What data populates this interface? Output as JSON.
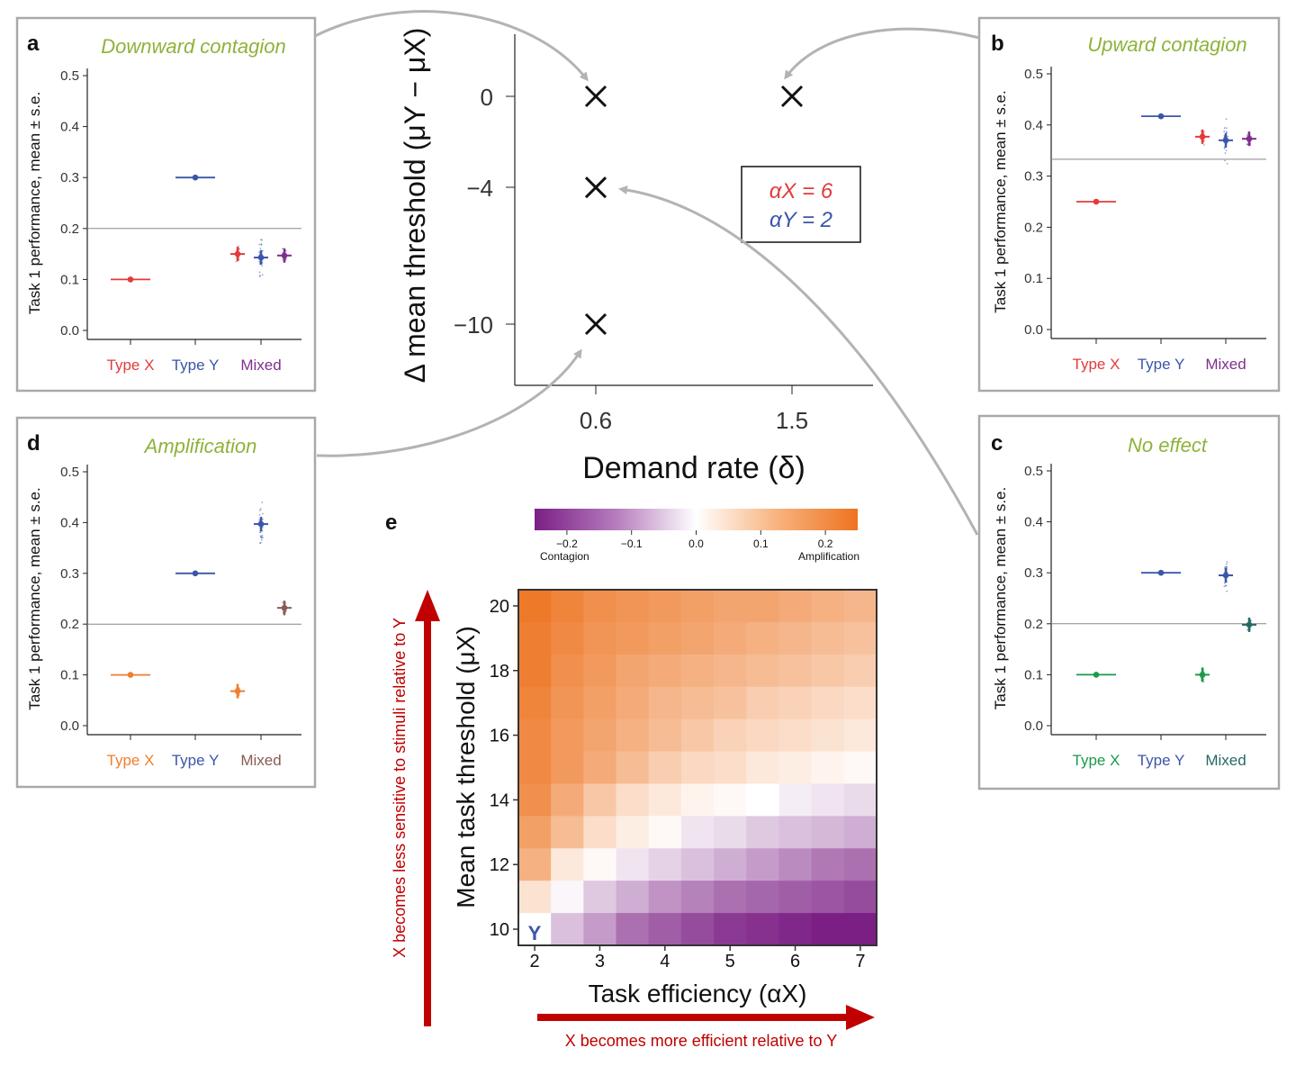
{
  "colors": {
    "red": "#e23b3b",
    "blue": "#3a56a8",
    "purple": "#7e2f8e",
    "orange": "#ee7f2d",
    "brown": "#8a5a52",
    "green": "#1a9a4a",
    "teal": "#246a64",
    "title_green": "#8db33a",
    "dark_red": "#c00000"
  },
  "small_panels": {
    "ylabel": "Task 1 performance, mean ± s.e.",
    "yticks": [
      "0.0",
      "0.1",
      "0.2",
      "0.3",
      "0.4",
      "0.5"
    ],
    "categories": [
      "Type X",
      "Type Y",
      "Mixed"
    ]
  },
  "center_plot": {
    "xlabel": "Demand rate (δ)",
    "ylabel": "Δ mean threshold (μY − μX)",
    "xticks": [
      "0.6",
      "1.5"
    ],
    "yticks": [
      "0",
      "−4",
      "−10"
    ],
    "legend": {
      "alpha_x": "αX = 6",
      "alpha_y": "αY = 2"
    }
  },
  "heatmap": {
    "letter": "e",
    "xlabel": "Task efficiency (αX)",
    "ylabel": "Mean task threshold (μX)",
    "xticks": [
      "2",
      "3",
      "4",
      "5",
      "6",
      "7"
    ],
    "yticks": [
      "20",
      "18",
      "16",
      "14",
      "12",
      "10"
    ],
    "y_marker": "Y",
    "colorbar": {
      "ticks": [
        "−0.2",
        "−0.1",
        "0.0",
        "0.1",
        "0.2"
      ],
      "left_label": "Contagion",
      "right_label": "Amplification"
    },
    "arrow_y_text": "X becomes less sensitive to stimuli relative to Y",
    "arrow_x_text": "X becomes more efficient relative to Y"
  },
  "chart_data": [
    {
      "panel": "a",
      "type": "scatter",
      "title": "Downward contagion",
      "ylabel": "Task 1 performance, mean ± s.e.",
      "ylim": [
        0,
        0.5
      ],
      "reference_line": 0.2,
      "categories": [
        "Type X",
        "Type Y",
        "Mixed"
      ],
      "points": [
        {
          "group": "Type X",
          "sub": 0,
          "value": 0.1,
          "color": "#e23b3b"
        },
        {
          "group": "Type Y",
          "sub": 0,
          "value": 0.3,
          "color": "#3a56a8"
        },
        {
          "group": "Mixed",
          "sub": -1,
          "value": 0.15,
          "color": "#e23b3b"
        },
        {
          "group": "Mixed",
          "sub": 0,
          "value": 0.143,
          "color": "#3a56a8"
        },
        {
          "group": "Mixed",
          "sub": 1,
          "value": 0.147,
          "color": "#7e2f8e"
        }
      ],
      "category_colors": [
        "#e23b3b",
        "#3a56a8",
        "#7e2f8e"
      ]
    },
    {
      "panel": "b",
      "type": "scatter",
      "title": "Upward contagion",
      "ylabel": "Task 1 performance, mean ± s.e.",
      "ylim": [
        0,
        0.5
      ],
      "reference_line": 0.333,
      "categories": [
        "Type X",
        "Type Y",
        "Mixed"
      ],
      "points": [
        {
          "group": "Type X",
          "sub": 0,
          "value": 0.25,
          "color": "#e23b3b"
        },
        {
          "group": "Type Y",
          "sub": 0,
          "value": 0.417,
          "color": "#3a56a8"
        },
        {
          "group": "Mixed",
          "sub": -1,
          "value": 0.377,
          "color": "#e23b3b"
        },
        {
          "group": "Mixed",
          "sub": 0,
          "value": 0.37,
          "color": "#3a56a8"
        },
        {
          "group": "Mixed",
          "sub": 1,
          "value": 0.373,
          "color": "#7e2f8e"
        }
      ],
      "category_colors": [
        "#e23b3b",
        "#3a56a8",
        "#7e2f8e"
      ]
    },
    {
      "panel": "c",
      "type": "scatter",
      "title": "No effect",
      "ylabel": "Task 1 performance, mean ± s.e.",
      "ylim": [
        0,
        0.5
      ],
      "reference_line": 0.2,
      "categories": [
        "Type X",
        "Type Y",
        "Mixed"
      ],
      "points": [
        {
          "group": "Type X",
          "sub": 0,
          "value": 0.1,
          "color": "#1a9a4a"
        },
        {
          "group": "Type Y",
          "sub": 0,
          "value": 0.3,
          "color": "#3a56a8"
        },
        {
          "group": "Mixed",
          "sub": -1,
          "value": 0.1,
          "color": "#1a9a4a"
        },
        {
          "group": "Mixed",
          "sub": 0,
          "value": 0.295,
          "color": "#3a56a8"
        },
        {
          "group": "Mixed",
          "sub": 1,
          "value": 0.198,
          "color": "#246a64"
        }
      ],
      "category_colors": [
        "#1a9a4a",
        "#3a56a8",
        "#246a64"
      ]
    },
    {
      "panel": "d",
      "type": "scatter",
      "title": "Amplification",
      "ylabel": "Task 1 performance, mean ± s.e.",
      "ylim": [
        0,
        0.5
      ],
      "reference_line": 0.2,
      "categories": [
        "Type X",
        "Type Y",
        "Mixed"
      ],
      "points": [
        {
          "group": "Type X",
          "sub": 0,
          "value": 0.1,
          "color": "#ee7f2d"
        },
        {
          "group": "Type Y",
          "sub": 0,
          "value": 0.3,
          "color": "#3a56a8"
        },
        {
          "group": "Mixed",
          "sub": -1,
          "value": 0.068,
          "color": "#ee7f2d"
        },
        {
          "group": "Mixed",
          "sub": 0,
          "value": 0.397,
          "color": "#3a56a8"
        },
        {
          "group": "Mixed",
          "sub": 1,
          "value": 0.232,
          "color": "#8a5a52"
        }
      ],
      "category_colors": [
        "#ee7f2d",
        "#3a56a8",
        "#8a5a52"
      ]
    },
    {
      "panel": "center",
      "type": "scatter",
      "xlabel": "Demand rate (δ)",
      "ylabel": "Δ mean threshold (μY − μX)",
      "x": [
        0.6,
        0.6,
        0.6,
        1.5
      ],
      "y": [
        0,
        -4,
        -10,
        0
      ]
    },
    {
      "panel": "e",
      "type": "heatmap",
      "xlabel": "Task efficiency (αX)",
      "ylabel": "Mean task threshold (μX)",
      "x": [
        2,
        2.5,
        3,
        3.5,
        4,
        4.5,
        5,
        5.5,
        6,
        6.5,
        7
      ],
      "y": [
        20,
        19,
        18,
        17,
        16,
        15,
        14,
        13,
        12,
        11,
        10
      ],
      "color_range": [
        -0.25,
        0.25
      ],
      "values": [
        [
          0.24,
          0.22,
          0.2,
          0.19,
          0.18,
          0.17,
          0.16,
          0.16,
          0.15,
          0.14,
          0.13
        ],
        [
          0.23,
          0.21,
          0.19,
          0.18,
          0.17,
          0.16,
          0.15,
          0.14,
          0.13,
          0.12,
          0.11
        ],
        [
          0.23,
          0.2,
          0.18,
          0.16,
          0.15,
          0.14,
          0.13,
          0.12,
          0.11,
          0.1,
          0.09
        ],
        [
          0.22,
          0.19,
          0.17,
          0.15,
          0.13,
          0.12,
          0.11,
          0.09,
          0.08,
          0.07,
          0.06
        ],
        [
          0.21,
          0.18,
          0.16,
          0.14,
          0.12,
          0.1,
          0.08,
          0.07,
          0.06,
          0.05,
          0.04
        ],
        [
          0.21,
          0.18,
          0.15,
          0.12,
          0.09,
          0.07,
          0.06,
          0.04,
          0.03,
          0.02,
          0.01
        ],
        [
          0.2,
          0.15,
          0.1,
          0.06,
          0.04,
          0.02,
          0.01,
          0.0,
          -0.02,
          -0.03,
          -0.04
        ],
        [
          0.17,
          0.12,
          0.06,
          0.03,
          0.01,
          -0.03,
          -0.04,
          -0.06,
          -0.07,
          -0.08,
          -0.09
        ],
        [
          0.14,
          0.04,
          0.01,
          -0.03,
          -0.05,
          -0.07,
          -0.09,
          -0.11,
          -0.13,
          -0.15,
          -0.16
        ],
        [
          0.05,
          -0.01,
          -0.06,
          -0.09,
          -0.12,
          -0.14,
          -0.16,
          -0.17,
          -0.18,
          -0.19,
          -0.2
        ],
        [
          0.0,
          -0.07,
          -0.11,
          -0.16,
          -0.18,
          -0.2,
          -0.22,
          -0.23,
          -0.24,
          -0.25,
          -0.25
        ]
      ]
    }
  ]
}
